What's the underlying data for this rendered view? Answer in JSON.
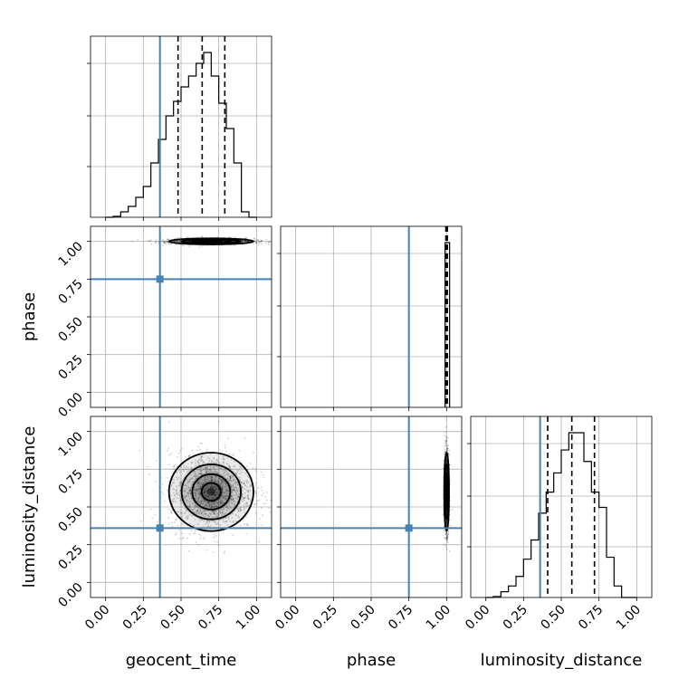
{
  "chart_data": {
    "type": "corner",
    "parameters": [
      "geocent_time",
      "phase",
      "luminosity_distance"
    ],
    "range": [
      -0.1,
      1.1
    ],
    "tick_labels": [
      "0.00",
      "0.25",
      "0.50",
      "0.75",
      "1.00"
    ],
    "ticks": [
      0,
      0.25,
      0.5,
      0.75,
      1.0
    ],
    "grid": true,
    "truths": {
      "geocent_time": 0.36,
      "phase": 0.75,
      "luminosity_distance": 0.36
    },
    "marginals": {
      "geocent_time": {
        "bin_width": 0.05,
        "bin_starts": [
          0.0,
          0.05,
          0.1,
          0.15,
          0.2,
          0.25,
          0.3,
          0.35,
          0.4,
          0.45,
          0.5,
          0.55,
          0.6,
          0.65,
          0.7,
          0.75,
          0.8,
          0.85,
          0.9,
          0.95
        ],
        "counts": [
          0,
          0.005,
          0.03,
          0.06,
          0.11,
          0.17,
          0.3,
          0.43,
          0.56,
          0.64,
          0.72,
          0.78,
          0.85,
          0.91,
          0.78,
          0.63,
          0.49,
          0.3,
          0.03,
          0
        ],
        "quantiles": [
          0.48,
          0.64,
          0.79
        ]
      },
      "phase": {
        "bin_width": 0.03,
        "bin_starts": [
          0.99
        ],
        "counts": [
          1.0
        ],
        "quantiles": [
          0.995,
          1.0,
          1.005
        ]
      },
      "luminosity_distance": {
        "bin_width": 0.05,
        "bin_starts": [
          0.0,
          0.05,
          0.1,
          0.15,
          0.2,
          0.25,
          0.3,
          0.35,
          0.4,
          0.45,
          0.5,
          0.55,
          0.6,
          0.65,
          0.7,
          0.75,
          0.8,
          0.85,
          0.9,
          0.95
        ],
        "counts": [
          0,
          0.005,
          0.03,
          0.06,
          0.11,
          0.2,
          0.3,
          0.44,
          0.55,
          0.65,
          0.77,
          0.86,
          0.86,
          0.71,
          0.55,
          0.47,
          0.21,
          0.06,
          0,
          0
        ],
        "quantiles": [
          0.41,
          0.57,
          0.72
        ]
      }
    },
    "joint": [
      {
        "x": "geocent_time",
        "y": "phase",
        "center": [
          0.7,
          1.0
        ],
        "spread": [
          0.14,
          0.01
        ]
      },
      {
        "x": "geocent_time",
        "y": "luminosity_distance",
        "center": [
          0.7,
          0.6
        ],
        "spread": [
          0.14,
          0.13
        ]
      },
      {
        "x": "phase",
        "y": "luminosity_distance",
        "center": [
          1.0,
          0.6
        ],
        "spread": [
          0.008,
          0.13
        ]
      }
    ]
  }
}
